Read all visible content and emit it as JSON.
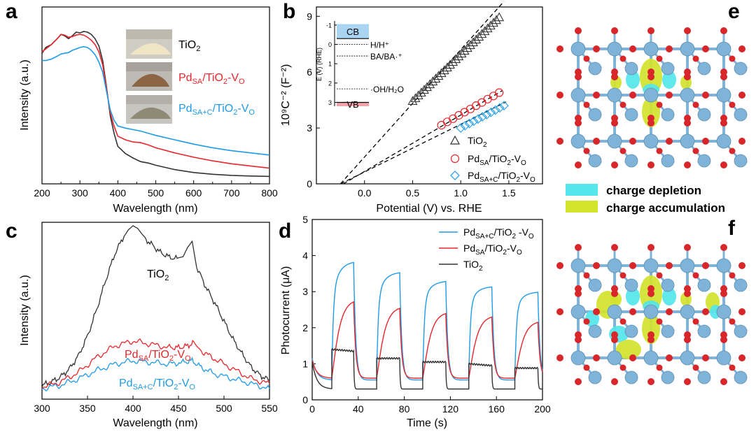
{
  "colors": {
    "red": "#e8262b",
    "blue": "#1e9be8",
    "black": "#333333",
    "cb": "#a9d4f2",
    "vb": "#f4a3ac",
    "cyan": "#54e6ea",
    "yellow": "#d2e32c",
    "ti": "#7fb3d8",
    "o": "#d8262a"
  },
  "panel_labels": {
    "a": "a",
    "b": "b",
    "c": "c",
    "d": "d",
    "e": "e",
    "f": "f"
  },
  "chart_data": [
    {
      "id": "a",
      "type": "line",
      "xlabel": "Wavelength (nm)",
      "ylabel": "Intensity (a.u.)",
      "xlim": [
        200,
        800
      ],
      "ylim": [
        0,
        1
      ],
      "xticks": [
        200,
        300,
        400,
        500,
        600,
        700,
        800
      ],
      "series": [
        {
          "name": "TiO2",
          "color": "#333333",
          "x": [
            200,
            210,
            225,
            240,
            250,
            260,
            270,
            280,
            290,
            300,
            310,
            320,
            330,
            340,
            350,
            360,
            370,
            380,
            390,
            400,
            420,
            440,
            460,
            480,
            500,
            550,
            600,
            650,
            700,
            750,
            800
          ],
          "y": [
            0.85,
            0.89,
            0.91,
            0.95,
            0.98,
            0.97,
            0.95,
            0.97,
            0.995,
            0.99,
            1.0,
            0.995,
            0.98,
            0.95,
            0.9,
            0.8,
            0.62,
            0.42,
            0.3,
            0.21,
            0.16,
            0.13,
            0.105,
            0.095,
            0.08,
            0.05,
            0.03,
            0.018,
            0.01,
            0.006,
            0.003
          ]
        },
        {
          "name": "PdSA/TiO2-VO",
          "color": "#e8262b",
          "x": [
            200,
            210,
            225,
            240,
            250,
            260,
            270,
            280,
            290,
            300,
            310,
            320,
            330,
            340,
            350,
            360,
            370,
            380,
            390,
            400,
            420,
            440,
            460,
            480,
            500,
            550,
            600,
            650,
            700,
            750,
            800
          ],
          "y": [
            0.86,
            0.88,
            0.91,
            0.95,
            0.98,
            0.975,
            0.96,
            0.965,
            0.975,
            0.98,
            0.975,
            0.96,
            0.94,
            0.91,
            0.86,
            0.77,
            0.61,
            0.44,
            0.35,
            0.28,
            0.255,
            0.24,
            0.235,
            0.22,
            0.2,
            0.165,
            0.135,
            0.11,
            0.09,
            0.075,
            0.06
          ]
        },
        {
          "name": "PdSA+C/TiO2-VO",
          "color": "#1e9be8",
          "x": [
            200,
            210,
            225,
            240,
            250,
            260,
            270,
            280,
            290,
            300,
            310,
            320,
            330,
            340,
            350,
            360,
            370,
            380,
            390,
            400,
            420,
            440,
            460,
            480,
            500,
            550,
            600,
            650,
            700,
            750,
            800
          ],
          "y": [
            0.8,
            0.8,
            0.81,
            0.83,
            0.845,
            0.85,
            0.855,
            0.87,
            0.88,
            0.89,
            0.895,
            0.89,
            0.87,
            0.84,
            0.79,
            0.72,
            0.59,
            0.46,
            0.39,
            0.35,
            0.335,
            0.325,
            0.315,
            0.3,
            0.285,
            0.255,
            0.225,
            0.2,
            0.18,
            0.165,
            0.15
          ]
        }
      ]
    },
    {
      "id": "b",
      "type": "scatter",
      "xlabel": "Potential (V) vs. RHE",
      "ylabel": "10⁹C⁻² (F⁻²)",
      "xlim": [
        -0.5,
        1.85
      ],
      "ylim": [
        0,
        9.5
      ],
      "xticks": [
        0.0,
        0.5,
        1.0,
        1.5
      ],
      "xtick_labels": [
        "0.0",
        "0.5",
        "1.0",
        "1.5"
      ],
      "yticks": [
        0,
        3,
        6,
        9
      ],
      "series": [
        {
          "name": "TiO2",
          "marker": "triangle",
          "color": "#333333",
          "x": [
            0.5,
            0.53,
            0.56,
            0.59,
            0.62,
            0.65,
            0.68,
            0.71,
            0.74,
            0.77,
            0.8,
            0.83,
            0.86,
            0.89,
            0.92,
            0.95,
            0.98,
            1.01,
            1.04,
            1.07,
            1.1,
            1.13,
            1.16,
            1.19,
            1.22,
            1.25,
            1.28,
            1.31,
            1.34,
            1.37,
            1.4
          ],
          "y": [
            4.45,
            4.6,
            4.75,
            4.9,
            5.05,
            5.2,
            5.35,
            5.5,
            5.65,
            5.8,
            5.95,
            6.1,
            6.25,
            6.4,
            6.55,
            6.7,
            6.85,
            7.0,
            7.15,
            7.3,
            7.45,
            7.6,
            7.75,
            7.9,
            8.05,
            8.2,
            8.35,
            8.5,
            8.65,
            8.8,
            8.95
          ]
        },
        {
          "name": "PdSA/TiO2-VO",
          "marker": "circle",
          "color": "#e8262b",
          "x": [
            0.8,
            0.86,
            0.92,
            0.98,
            1.04,
            1.1,
            1.16,
            1.22,
            1.28,
            1.34,
            1.4
          ],
          "y": [
            3.15,
            3.33,
            3.5,
            3.68,
            3.85,
            4.02,
            4.2,
            4.37,
            4.55,
            4.72,
            4.9
          ]
        },
        {
          "name": "PdSA+C/TiO2-VO",
          "marker": "diamond",
          "color": "#1e9be8",
          "x": [
            1.0,
            1.045,
            1.09,
            1.135,
            1.18,
            1.225,
            1.27,
            1.315,
            1.36,
            1.405,
            1.45
          ],
          "y": [
            3.0,
            3.12,
            3.24,
            3.36,
            3.48,
            3.6,
            3.72,
            3.84,
            3.96,
            4.08,
            4.2
          ]
        }
      ],
      "fit_lines": [
        {
          "x": [
            -0.25,
            1.45
          ],
          "y": [
            0.0,
            9.8
          ]
        },
        {
          "x": [
            -0.22,
            1.43
          ],
          "y": [
            0.0,
            5.0
          ]
        },
        {
          "x": [
            -0.25,
            1.47
          ],
          "y": [
            0.0,
            4.4
          ]
        }
      ],
      "legend": [
        "TiO2",
        "PdSA/TiO2-VO",
        "PdSA+C/TiO2-VO"
      ],
      "inset": {
        "ylabel": "E (V) (RHE)",
        "ylim": [
          -1.5,
          3.2
        ],
        "yticks": [
          -1,
          0,
          1,
          2,
          3
        ],
        "cb_label": "CB",
        "vb_label": "VB",
        "cb_range": [
          -1.05,
          -0.3
        ],
        "vb_range": [
          3.0,
          3.8
        ],
        "levels": [
          {
            "E": 0.0,
            "label": "H/H⁺"
          },
          {
            "E": 0.6,
            "label": "BA/BA·⁺"
          },
          {
            "E": 2.3,
            "label": "·OH/H₂O"
          }
        ]
      }
    },
    {
      "id": "c",
      "type": "line",
      "xlabel": "Wavelength (nm)",
      "ylabel": "Intensity (a.u.)",
      "xlim": [
        300,
        550
      ],
      "ylim": [
        0,
        1
      ],
      "xticks": [
        300,
        350,
        400,
        450,
        500,
        550
      ],
      "series": [
        {
          "name": "TiO2",
          "color": "#333333",
          "x": [
            300,
            310,
            320,
            330,
            340,
            350,
            360,
            370,
            380,
            390,
            395,
            400,
            405,
            410,
            420,
            430,
            440,
            450,
            455,
            460,
            465,
            470,
            480,
            490,
            500,
            510,
            520,
            530,
            540,
            550
          ],
          "y": [
            0.02,
            0.04,
            0.07,
            0.12,
            0.2,
            0.32,
            0.48,
            0.66,
            0.82,
            0.93,
            0.97,
            0.99,
            0.97,
            0.93,
            0.88,
            0.83,
            0.8,
            0.79,
            0.8,
            0.86,
            0.9,
            0.74,
            0.62,
            0.52,
            0.41,
            0.3,
            0.21,
            0.13,
            0.08,
            0.05
          ]
        },
        {
          "name": "PdSA/TiO2-VO",
          "color": "#e8262b",
          "x": [
            300,
            320,
            340,
            360,
            380,
            400,
            420,
            440,
            450,
            460,
            467,
            475,
            490,
            510,
            530,
            550
          ],
          "y": [
            0.01,
            0.04,
            0.1,
            0.19,
            0.26,
            0.29,
            0.27,
            0.25,
            0.25,
            0.26,
            0.28,
            0.23,
            0.18,
            0.12,
            0.06,
            0.03
          ]
        },
        {
          "name": "PdSA+C/TiO2-VO",
          "color": "#1e9be8",
          "x": [
            300,
            320,
            340,
            360,
            380,
            400,
            420,
            440,
            455,
            465,
            475,
            490,
            510,
            530,
            550
          ],
          "y": [
            0.0,
            0.02,
            0.06,
            0.11,
            0.15,
            0.17,
            0.16,
            0.15,
            0.16,
            0.17,
            0.13,
            0.09,
            0.06,
            0.03,
            0.0
          ]
        }
      ],
      "labels": [
        "TiO2",
        "PdSA/TiO2-VO",
        "PdSA+C/TiO2-VO"
      ]
    },
    {
      "id": "d",
      "type": "line",
      "xlabel": "Time (s)",
      "ylabel": "Photocurrent (μA)",
      "xlim": [
        0,
        200
      ],
      "ylim": [
        0,
        5
      ],
      "xticks": [
        0,
        40,
        80,
        120,
        160,
        200
      ],
      "yticks": [
        0,
        1,
        2,
        3,
        4,
        5
      ],
      "on_periods": [
        [
          17,
          36
        ],
        [
          56,
          76
        ],
        [
          96,
          116
        ],
        [
          136,
          156
        ],
        [
          176,
          196
        ]
      ],
      "series": [
        {
          "name": "PdSA+C/TiO2-VO",
          "color": "#1e9be8",
          "dark": [
            1.15,
            0.55
          ],
          "light_start": [
            2.9,
            2.8,
            2.7,
            2.6,
            2.5
          ],
          "light_end": [
            3.85,
            3.55,
            3.3,
            3.15,
            3.0
          ],
          "rise_tau": 1.2
        },
        {
          "name": "PdSA/TiO2-VO",
          "color": "#e8262b",
          "dark": [
            1.1,
            0.6
          ],
          "light_start": [
            1.6,
            1.5,
            1.45,
            1.4,
            1.3
          ],
          "light_end": [
            2.8,
            2.6,
            2.45,
            2.35,
            2.2
          ],
          "rise_tau": 4.5
        },
        {
          "name": "TiO2",
          "color": "#333333",
          "dark": [
            1.05,
            0.3
          ],
          "light_start": [
            1.4,
            1.15,
            1.05,
            1.0,
            0.88
          ],
          "light_end": [
            1.35,
            1.15,
            1.05,
            0.95,
            0.88
          ],
          "rise_tau": 0.5
        }
      ],
      "legend": [
        "PdSA+C/TiO2-VO",
        "PdSA/TiO2-VO",
        "TiO2"
      ]
    }
  ],
  "labels": {
    "tio2": {
      "base": "TiO",
      "sub": "2"
    },
    "pdsa": {
      "a": "Pd",
      "as": "SA",
      "b": "/TiO",
      "bs": "2",
      "c": "-V",
      "cs": "O"
    },
    "pdsac": {
      "a": "Pd",
      "as": "SA+C",
      "b": "/TiO",
      "bs": "2",
      "c": "-V",
      "cs": "O"
    },
    "pdsac_d": {
      "a": "Pd",
      "as": "SA+C",
      "b": "/TiO",
      "bs": "2",
      "c": " -V",
      "cs": "O"
    }
  },
  "dft_legend": {
    "depletion": "charge depletion",
    "accumulation": "charge accumulation"
  },
  "photo_captions": [
    "TiO2",
    "PdSA/TiO2-VO",
    "PdSA+C/TiO2-VO"
  ]
}
